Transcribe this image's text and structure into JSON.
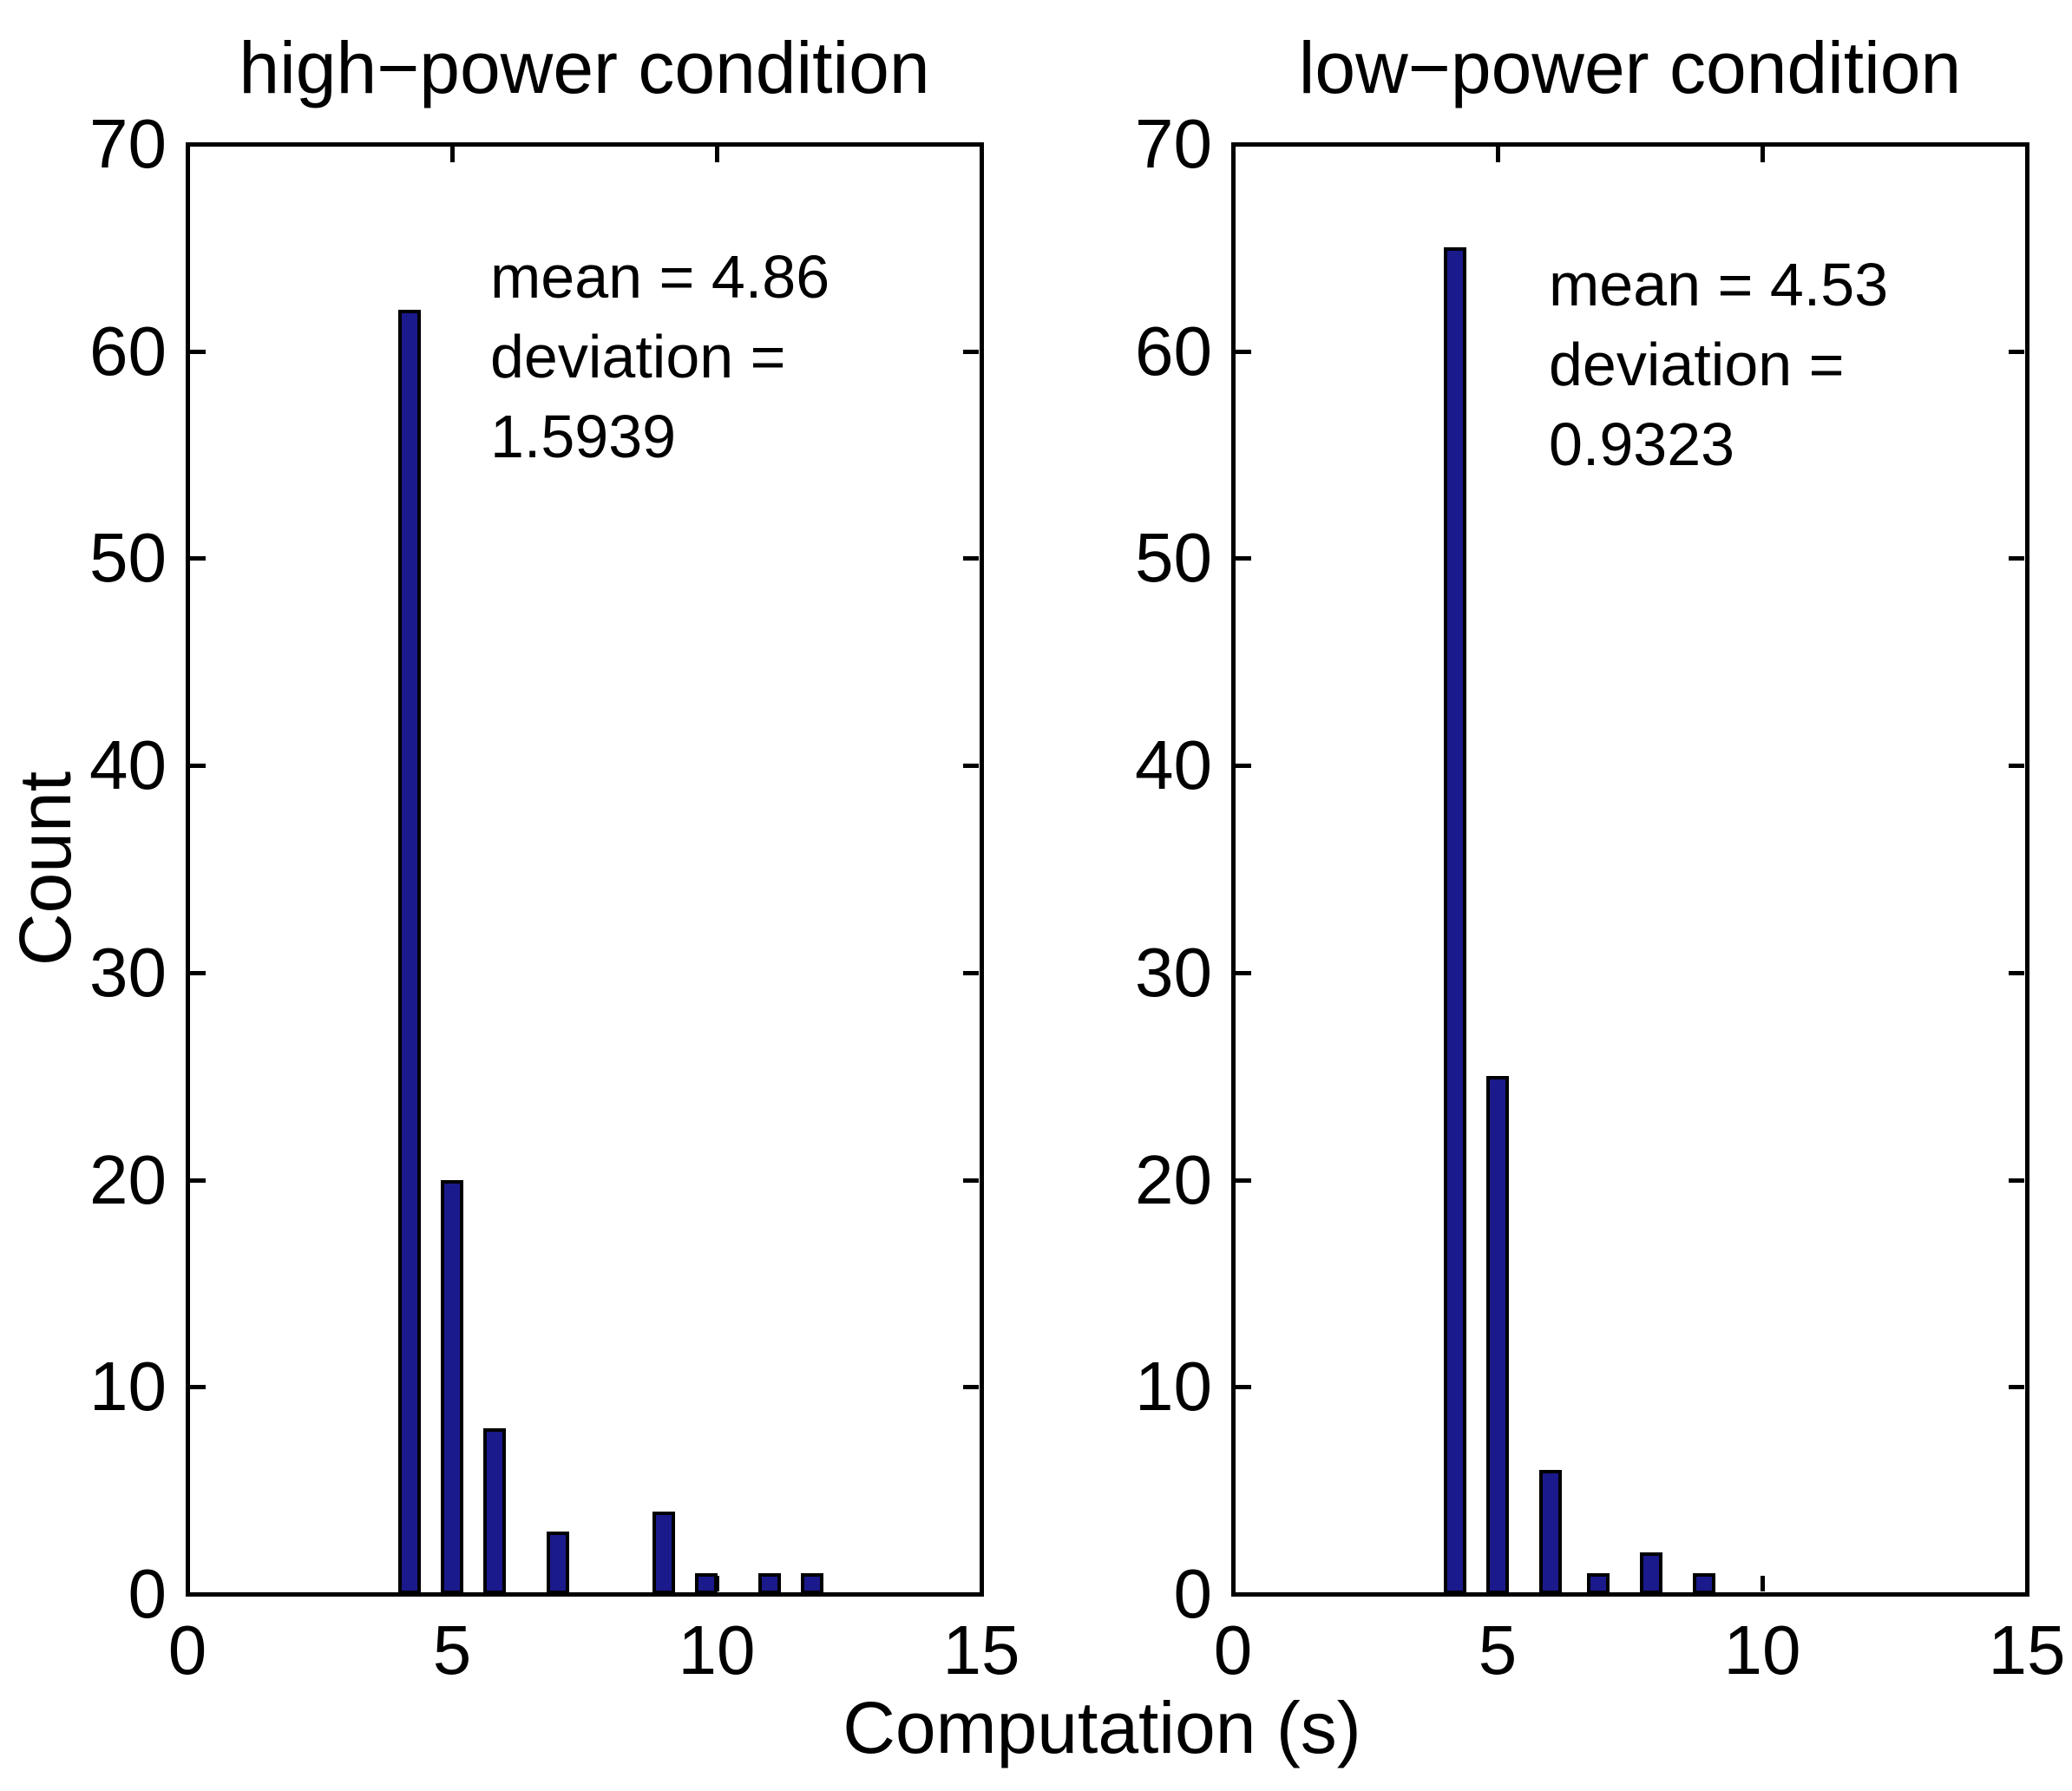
{
  "figure": {
    "background": "#ffffff",
    "axis_color": "#000000",
    "bar_fill": "#1a1a8c",
    "bar_edge": "#000000",
    "xlabel": "Computation (s)",
    "ylabel": "Count"
  },
  "chart_data": [
    {
      "type": "bar",
      "title": "high−power condition",
      "xlabel_shared": "Computation (s)",
      "ylabel": "Count",
      "xlim": [
        0,
        15
      ],
      "ylim": [
        0,
        70
      ],
      "xticks": [
        0,
        5,
        10,
        15
      ],
      "yticks": [
        0,
        10,
        20,
        30,
        40,
        50,
        60,
        70
      ],
      "grid": false,
      "legend": null,
      "bar_width_units": 0.42,
      "bars": {
        "x": [
          4.2,
          5.0,
          5.8,
          7.0,
          9.0,
          9.8,
          11.0,
          11.8
        ],
        "count": [
          62,
          20,
          8,
          3,
          4,
          1,
          1,
          1
        ]
      },
      "underlying_value_counts": {
        "4": 62,
        "5": 20,
        "6": 8,
        "7": 3,
        "9": 4,
        "10": 1,
        "11": 1,
        "12": 1
      },
      "annotation": {
        "lines": [
          "mean = 4.86",
          "deviation =",
          "1.5939"
        ],
        "mean": 4.86,
        "deviation": 1.5939
      }
    },
    {
      "type": "bar",
      "title": "low−power condition",
      "xlabel_shared": "Computation (s)",
      "ylabel": null,
      "xlim": [
        0,
        15
      ],
      "ylim": [
        0,
        70
      ],
      "xticks": [
        0,
        5,
        10,
        15
      ],
      "yticks": [
        0,
        10,
        20,
        30,
        40,
        50,
        60,
        70
      ],
      "grid": false,
      "legend": null,
      "bar_width_units": 0.42,
      "bars": {
        "x": [
          4.2,
          5.0,
          6.0,
          6.9,
          7.9,
          8.9
        ],
        "count": [
          65,
          25,
          6,
          1,
          2,
          1
        ]
      },
      "underlying_value_counts": {
        "4": 65,
        "5": 25,
        "6": 6,
        "7": 1,
        "8": 2,
        "9": 1
      },
      "annotation": {
        "lines": [
          "mean = 4.53",
          "deviation =",
          "0.9323"
        ],
        "mean": 4.53,
        "deviation": 0.9323
      }
    }
  ]
}
